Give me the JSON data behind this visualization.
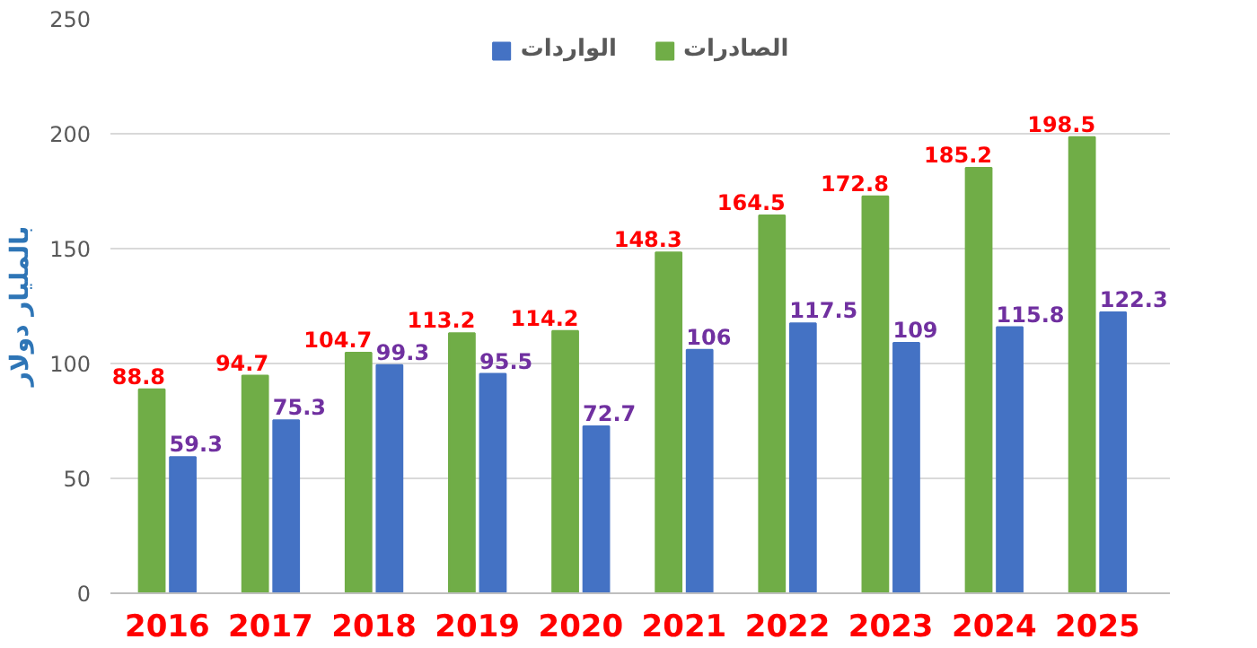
{
  "chart_data": {
    "type": "bar",
    "ylabel": "بالمليار دولار",
    "categories": [
      "2016",
      "2017",
      "2018",
      "2019",
      "2020",
      "2021",
      "2022",
      "2023",
      "2024",
      "2025"
    ],
    "series": [
      {
        "name": "الصادرات",
        "color": "#70ad47",
        "values": [
          88.8,
          94.7,
          104.7,
          113.2,
          114.2,
          148.3,
          164.5,
          172.8,
          185.2,
          198.5
        ]
      },
      {
        "name": "الواردات",
        "color": "#4472c4",
        "values": [
          59.3,
          75.3,
          99.3,
          95.5,
          72.7,
          106,
          117.5,
          109,
          115.8,
          122.3
        ]
      }
    ],
    "ylim": [
      0,
      250
    ],
    "yticks": [
      0,
      50,
      100,
      150,
      200,
      250
    ],
    "grid": "y",
    "legend": "top",
    "data_labels": true
  }
}
